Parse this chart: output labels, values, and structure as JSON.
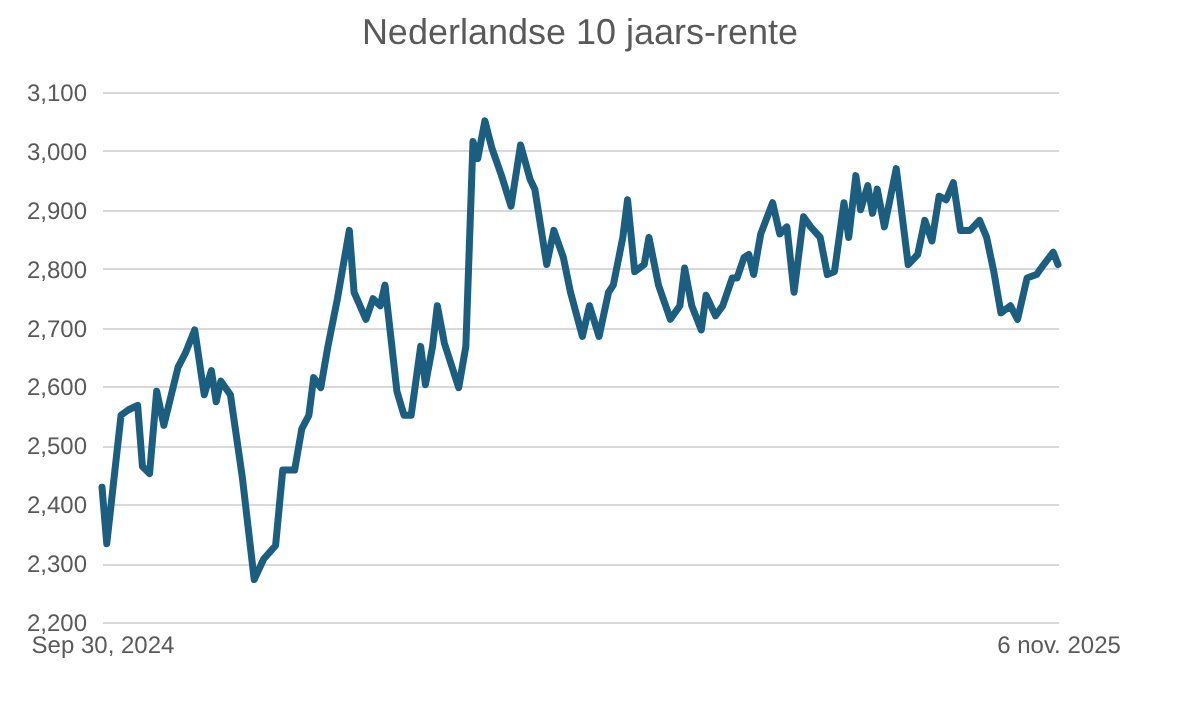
{
  "chart_data": {
    "type": "line",
    "title": "Nederlandse 10 jaars-rente",
    "x": [
      "2024-09-30",
      "2024-10-02",
      "2024-10-08",
      "2024-10-11",
      "2024-10-15",
      "2024-10-17",
      "2024-10-20",
      "2024-10-23",
      "2024-10-26",
      "2024-11-01",
      "2024-11-04",
      "2024-11-08",
      "2024-11-12",
      "2024-11-15",
      "2024-11-17",
      "2024-11-19",
      "2024-11-23",
      "2024-11-28",
      "2024-12-03",
      "2024-12-07",
      "2024-12-12",
      "2024-12-15",
      "2024-12-20",
      "2024-12-23",
      "2024-12-26",
      "2024-12-28",
      "2024-12-31",
      "2025-01-03",
      "2025-01-07",
      "2025-01-12",
      "2025-01-14",
      "2025-01-19",
      "2025-01-22",
      "2025-01-25",
      "2025-01-27",
      "2025-02-01",
      "2025-02-04",
      "2025-02-07",
      "2025-02-11",
      "2025-02-13",
      "2025-02-16",
      "2025-02-18",
      "2025-02-21",
      "2025-02-27",
      "2025-03-02",
      "2025-03-05",
      "2025-03-07",
      "2025-03-10",
      "2025-03-13",
      "2025-03-17",
      "2025-03-21",
      "2025-03-25",
      "2025-03-29",
      "2025-03-31",
      "2025-04-05",
      "2025-04-08",
      "2025-04-12",
      "2025-04-15",
      "2025-04-20",
      "2025-04-23",
      "2025-04-27",
      "2025-05-01",
      "2025-05-03",
      "2025-05-07",
      "2025-05-09",
      "2025-05-12",
      "2025-05-16",
      "2025-05-18",
      "2025-05-22",
      "2025-05-27",
      "2025-05-31",
      "2025-06-02",
      "2025-06-05",
      "2025-06-09",
      "2025-06-11",
      "2025-06-15",
      "2025-06-18",
      "2025-06-22",
      "2025-06-24",
      "2025-06-27",
      "2025-06-29",
      "2025-07-01",
      "2025-07-04",
      "2025-07-09",
      "2025-07-12",
      "2025-07-15",
      "2025-07-18",
      "2025-07-22",
      "2025-07-25",
      "2025-07-29",
      "2025-08-01",
      "2025-08-04",
      "2025-08-08",
      "2025-08-10",
      "2025-08-13",
      "2025-08-15",
      "2025-08-18",
      "2025-08-20",
      "2025-08-22",
      "2025-08-25",
      "2025-08-30",
      "2025-09-04",
      "2025-09-08",
      "2025-09-11",
      "2025-09-14",
      "2025-09-17",
      "2025-09-20",
      "2025-09-23",
      "2025-09-26",
      "2025-09-30",
      "2025-10-04",
      "2025-10-07",
      "2025-10-10",
      "2025-10-13",
      "2025-10-17",
      "2025-10-20",
      "2025-10-24",
      "2025-10-28",
      "2025-10-31",
      "2025-11-04",
      "2025-11-06"
    ],
    "series": [
      {
        "color": "#1b5e80",
        "values": [
          2429,
          2333,
          2551,
          2560,
          2568,
          2464,
          2452,
          2592,
          2534,
          2633,
          2656,
          2696,
          2586,
          2627,
          2574,
          2609,
          2586,
          2446,
          2272,
          2307,
          2330,
          2458,
          2458,
          2528,
          2551,
          2615,
          2598,
          2668,
          2749,
          2865,
          2760,
          2714,
          2749,
          2737,
          2772,
          2592,
          2551,
          2551,
          2668,
          2603,
          2668,
          2737,
          2673,
          2598,
          2668,
          3016,
          2987,
          3051,
          3004,
          2958,
          2906,
          3010,
          2952,
          2935,
          2807,
          2865,
          2819,
          2760,
          2685,
          2737,
          2685,
          2760,
          2772,
          2853,
          2917,
          2795,
          2807,
          2853,
          2772,
          2714,
          2737,
          2801,
          2737,
          2696,
          2755,
          2720,
          2737,
          2784,
          2784,
          2819,
          2824,
          2790,
          2859,
          2912,
          2859,
          2871,
          2760,
          2888,
          2871,
          2853,
          2790,
          2795,
          2912,
          2853,
          2958,
          2900,
          2941,
          2894,
          2935,
          2871,
          2970,
          2807,
          2824,
          2882,
          2847,
          2923,
          2917,
          2946,
          2865,
          2865,
          2882,
          2853,
          2795,
          2725,
          2737,
          2714,
          2784,
          2790,
          2807,
          2828,
          2807
        ]
      }
    ],
    "xlim": [
      "2024-09-30",
      "2025-11-06"
    ],
    "xticks": [
      {
        "value": "2024-09-30",
        "label": "Sep 30, 2024"
      },
      {
        "value": "2025-11-06",
        "label": "6 nov. 2025"
      }
    ],
    "ylim": [
      2200,
      3100
    ],
    "yticks": [
      {
        "value": 2200,
        "label": "2,200"
      },
      {
        "value": 2300,
        "label": "2,300"
      },
      {
        "value": 2400,
        "label": "2,400"
      },
      {
        "value": 2500,
        "label": "2,500"
      },
      {
        "value": 2600,
        "label": "2,600"
      },
      {
        "value": 2700,
        "label": "2,700"
      },
      {
        "value": 2800,
        "label": "2,800"
      },
      {
        "value": 2900,
        "label": "2,900"
      },
      {
        "value": 3000,
        "label": "3,000"
      },
      {
        "value": 3100,
        "label": "3,100"
      }
    ],
    "grid": "y"
  }
}
